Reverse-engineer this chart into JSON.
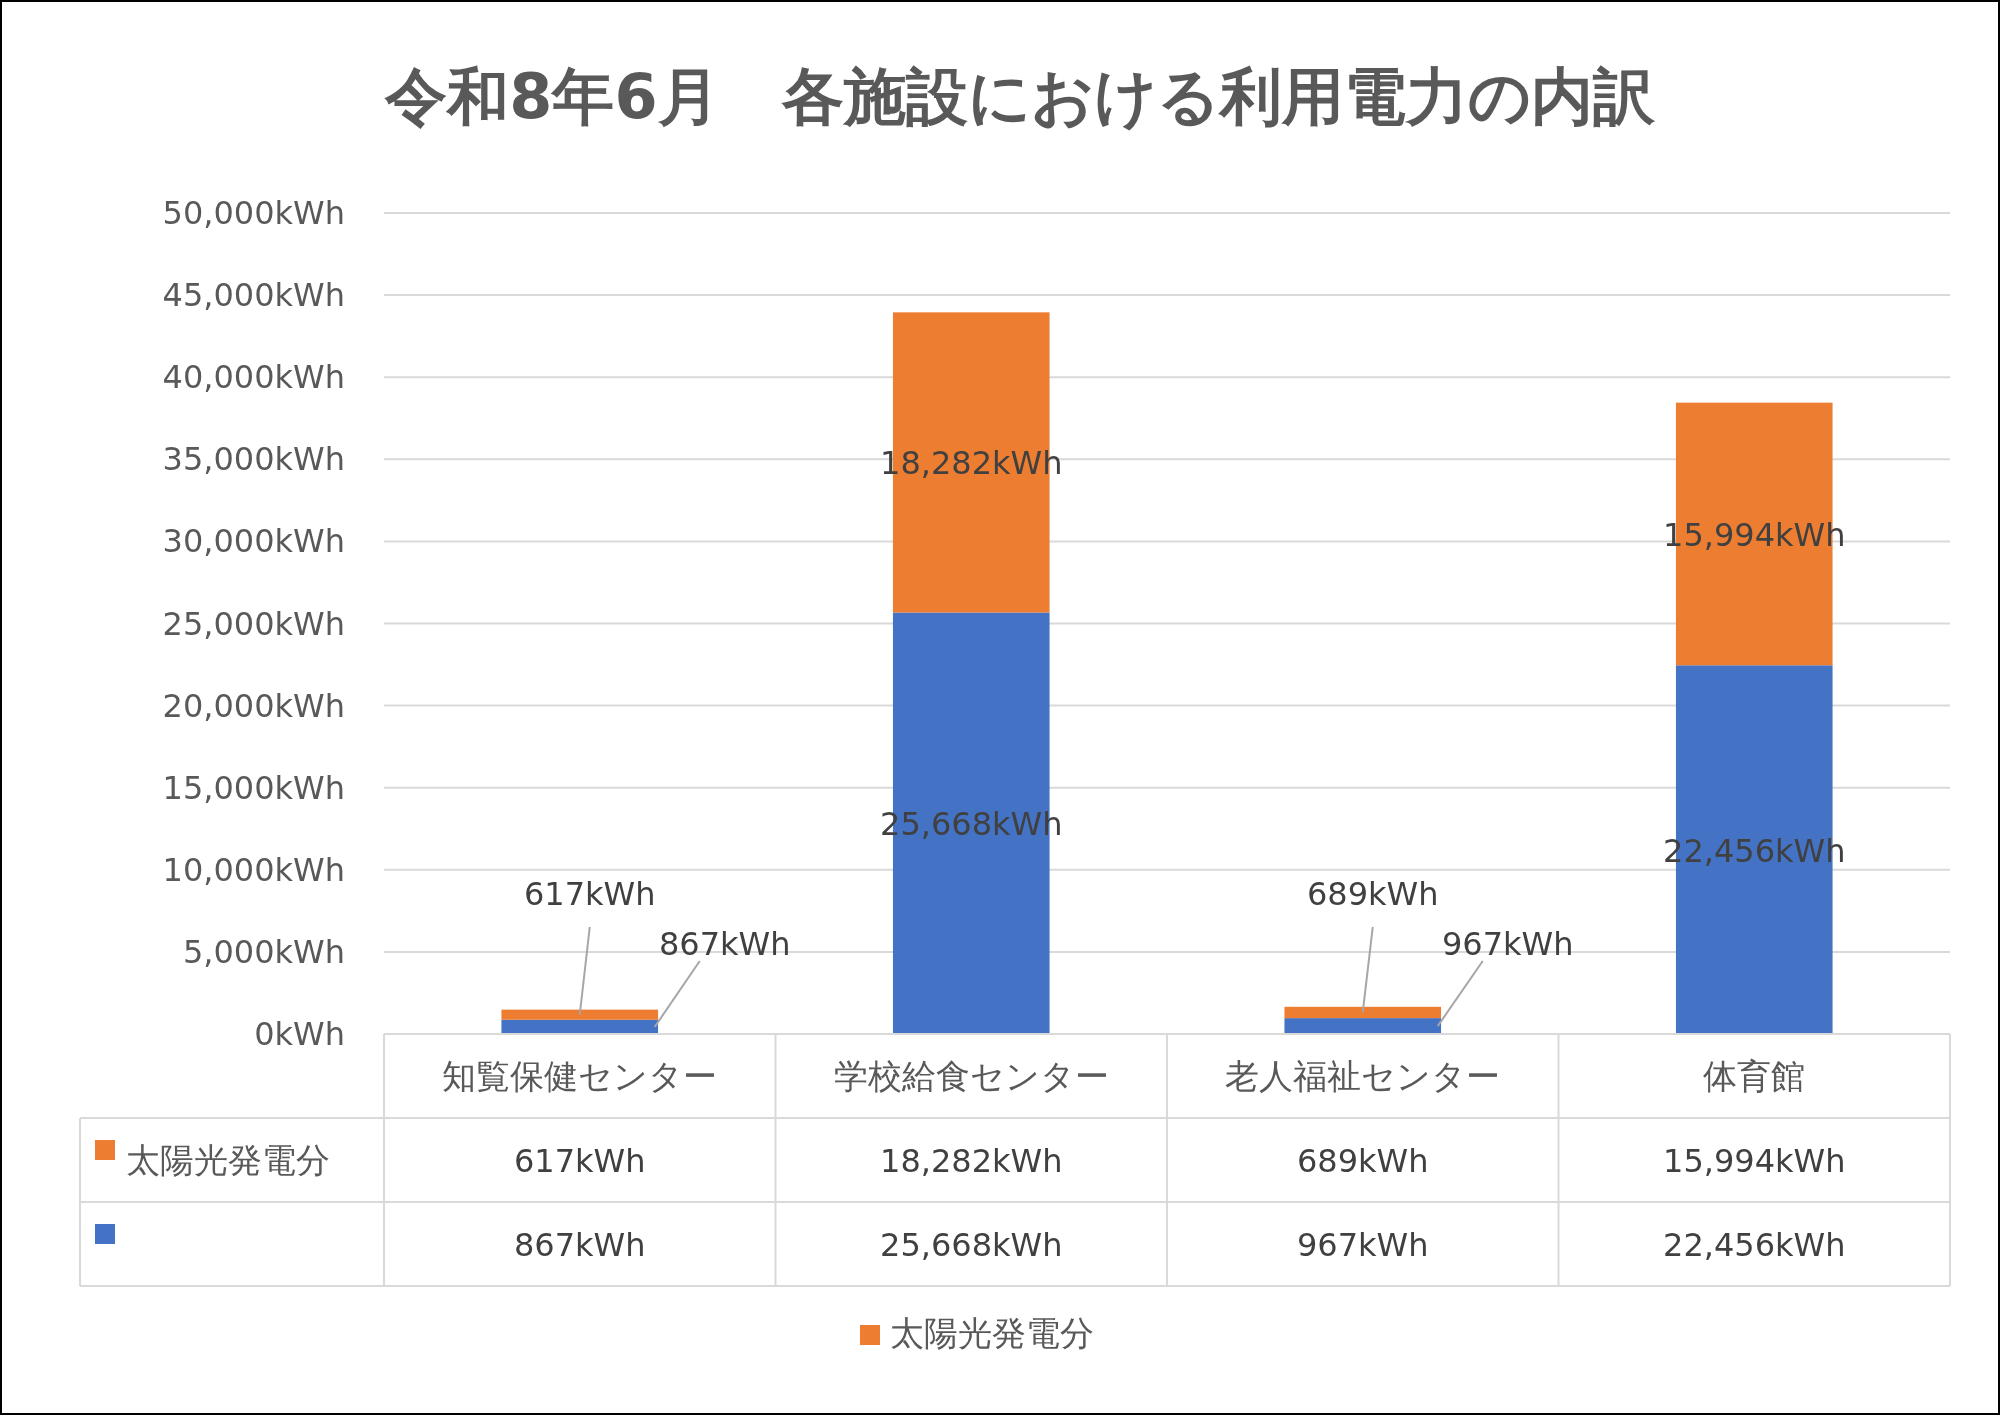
{
  "chart_data": {
    "type": "bar",
    "stacked": true,
    "title": "令和8年6月　各施設における利用電力の内訳",
    "categories": [
      "知覧保健センター",
      "学校給食センター",
      "老人福祉センター",
      "体育館"
    ],
    "series": [
      {
        "color": "#4472c4",
        "values": [
          867,
          25668,
          967,
          22456
        ],
        "value_labels": [
          "867kWh",
          "25,668kWh",
          "967kWh",
          "22,456kWh"
        ]
      },
      {
        "name": "太陽光発電分",
        "color": "#ed7d31",
        "values": [
          617,
          18282,
          689,
          15994
        ],
        "value_labels": [
          "617kWh",
          "18,282kWh",
          "689kWh",
          "15,994kWh"
        ]
      }
    ],
    "ylim": [
      0,
      50000
    ],
    "yticks": [
      {
        "value": 0,
        "label": "0kWh"
      },
      {
        "value": 5000,
        "label": "5,000kWh"
      },
      {
        "value": 10000,
        "label": "10,000kWh"
      },
      {
        "value": 15000,
        "label": "15,000kWh"
      },
      {
        "value": 20000,
        "label": "20,000kWh"
      },
      {
        "value": 25000,
        "label": "25,000kWh"
      },
      {
        "value": 30000,
        "label": "30,000kWh"
      },
      {
        "value": 35000,
        "label": "35,000kWh"
      },
      {
        "value": 40000,
        "label": "40,000kWh"
      },
      {
        "value": 45000,
        "label": "45,000kWh"
      },
      {
        "value": 50000,
        "label": "50,000kWh"
      }
    ],
    "grid": "y",
    "legend": "bottom"
  }
}
